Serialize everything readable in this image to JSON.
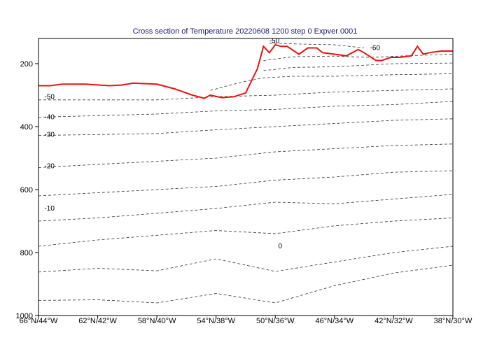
{
  "chart_data": {
    "type": "line",
    "title": "Cross section of Temperature 20220608 1200 step 0 Expver 0001",
    "xlabel": "",
    "ylabel": "",
    "x_tick_labels": [
      "66°N/44°W",
      "62°N/42°W",
      "58°N/40°W",
      "54°N/38°W",
      "50°N/36°W",
      "46°N/34°W",
      "42°N/32°W",
      "38°N/30°W"
    ],
    "y_tick_values": [
      200,
      400,
      600,
      800,
      1000
    ],
    "y_tick_labels": [
      "200",
      "400",
      "600",
      "800",
      "1000"
    ],
    "ylim": [
      1000,
      120
    ],
    "x_index_range": [
      0,
      7
    ],
    "contour_labels": [
      {
        "text": "-50",
        "x": 0.1,
        "y": 305
      },
      {
        "text": "-40",
        "x": 0.1,
        "y": 370
      },
      {
        "text": "-30",
        "x": 0.1,
        "y": 426
      },
      {
        "text": "-20",
        "x": 0.1,
        "y": 526
      },
      {
        "text": "-10",
        "x": 0.1,
        "y": 660
      },
      {
        "text": "0",
        "x": 4.05,
        "y": 780
      },
      {
        "text": "-50",
        "x": 3.9,
        "y": 128
      },
      {
        "text": "-60",
        "x": 5.6,
        "y": 150
      }
    ],
    "series": [
      {
        "color": "#ee1111",
        "x": [
          0,
          0.2,
          0.4,
          0.8,
          1.2,
          1.4,
          1.6,
          2.0,
          2.3,
          2.6,
          2.8,
          2.9,
          3.1,
          3.3,
          3.5,
          3.7,
          3.8,
          3.9,
          4.0,
          4.1,
          4.2,
          4.4,
          4.55,
          4.7,
          4.8,
          5.0,
          5.2,
          5.4,
          5.5,
          5.7,
          5.8,
          5.95,
          6.1,
          6.3,
          6.4,
          6.5,
          6.6,
          6.8,
          7.0
        ],
        "y": [
          270,
          270,
          265,
          265,
          270,
          268,
          262,
          265,
          280,
          300,
          310,
          300,
          308,
          305,
          293,
          215,
          145,
          165,
          140,
          145,
          145,
          170,
          150,
          150,
          165,
          170,
          175,
          155,
          165,
          190,
          190,
          180,
          180,
          175,
          145,
          170,
          165,
          160,
          160
        ]
      }
    ],
    "contours": [
      {
        "x": [
          0,
          1,
          2,
          3,
          4,
          5,
          6,
          7
        ],
        "y": [
          952,
          950,
          960,
          930,
          960,
          905,
          865,
          840
        ]
      },
      {
        "x": [
          0,
          1,
          2,
          3,
          4,
          5,
          6,
          7
        ],
        "y": [
          862,
          850,
          858,
          820,
          860,
          830,
          800,
          780
        ]
      },
      {
        "x": [
          0,
          1,
          2,
          3,
          4,
          5,
          6,
          7
        ],
        "y": [
          780,
          760,
          745,
          730,
          740,
          715,
          700,
          690
        ]
      },
      {
        "x": [
          0,
          1,
          2,
          3,
          4,
          5,
          6,
          7
        ],
        "y": [
          700,
          690,
          675,
          660,
          640,
          645,
          630,
          615
        ]
      },
      {
        "x": [
          0,
          1,
          2,
          3,
          4,
          5,
          6,
          7
        ],
        "y": [
          620,
          610,
          600,
          590,
          570,
          560,
          545,
          540
        ]
      },
      {
        "x": [
          0,
          1,
          2,
          3,
          4,
          5,
          6,
          7
        ],
        "y": [
          530,
          520,
          510,
          500,
          480,
          470,
          460,
          455
        ]
      },
      {
        "x": [
          0,
          1,
          2,
          3,
          4,
          5,
          6,
          7
        ],
        "y": [
          428,
          425,
          422,
          410,
          400,
          390,
          380,
          375
        ]
      },
      {
        "x": [
          0,
          1,
          2,
          3,
          4,
          5,
          6,
          7
        ],
        "y": [
          370,
          365,
          360,
          350,
          345,
          335,
          330,
          320
        ]
      },
      {
        "x": [
          0,
          1,
          2,
          3,
          4,
          5,
          6,
          7
        ],
        "y": [
          315,
          315,
          315,
          305,
          300,
          290,
          285,
          280
        ]
      },
      {
        "x": [
          2.9,
          3.4,
          3.8,
          4.3,
          5,
          6,
          7
        ],
        "y": [
          285,
          260,
          245,
          240,
          240,
          235,
          232
        ]
      },
      {
        "x": [
          3.8,
          4.3,
          5,
          6,
          7
        ],
        "y": [
          222,
          212,
          210,
          200,
          198
        ]
      },
      {
        "x": [
          3.8,
          4.3,
          5,
          5.6,
          6.2,
          7
        ],
        "y": [
          190,
          178,
          176,
          180,
          175,
          170
        ]
      },
      {
        "x": [
          3.9,
          4.5,
          5,
          5.5
        ],
        "y": [
          135,
          138,
          140,
          150
        ]
      }
    ]
  }
}
